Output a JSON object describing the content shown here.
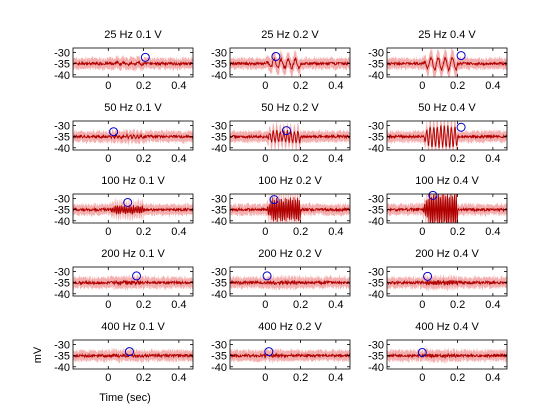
{
  "figure": {
    "xlabel": "Time (sec)",
    "ylabel": "mV",
    "colors": {
      "trace": "#b00000",
      "band": "#f2a0a0",
      "marker": "#0000cc",
      "axis": "#000000"
    }
  },
  "chart_data": {
    "type": "line",
    "layout": {
      "rows": 5,
      "cols": 3
    },
    "xlim": [
      -0.2,
      0.48
    ],
    "ylim": [
      -41,
      -28
    ],
    "xticks": [
      0,
      0.2,
      0.4
    ],
    "xtick_labels": [
      "0",
      "0.2",
      "0.4"
    ],
    "yticks": [
      -30,
      -35,
      -40
    ],
    "ytick_labels": [
      "-30",
      "-35",
      "-40"
    ],
    "baseline_mV": -35,
    "panels": [
      {
        "title": "25 Hz 0.1 V",
        "freq": 25,
        "amp": 0.1,
        "osc_mV": 0.6,
        "marker": [
          0.21,
          -32.2
        ]
      },
      {
        "title": "25 Hz 0.2 V",
        "freq": 25,
        "amp": 0.2,
        "osc_mV": 2.2,
        "marker": [
          0.06,
          -31.8
        ]
      },
      {
        "title": "25 Hz 0.4 V",
        "freq": 25,
        "amp": 0.4,
        "osc_mV": 3.0,
        "marker": [
          0.22,
          -31.4
        ]
      },
      {
        "title": "50 Hz 0.1 V",
        "freq": 50,
        "amp": 0.1,
        "osc_mV": 0.6,
        "marker": [
          0.03,
          -32.8
        ]
      },
      {
        "title": "50 Hz 0.2 V",
        "freq": 50,
        "amp": 0.2,
        "osc_mV": 2.6,
        "marker": [
          0.12,
          -32.3
        ]
      },
      {
        "title": "50 Hz 0.4 V",
        "freq": 50,
        "amp": 0.4,
        "osc_mV": 5.0,
        "marker": [
          0.22,
          -30.8
        ]
      },
      {
        "title": "100 Hz 0.1 V",
        "freq": 100,
        "amp": 0.1,
        "osc_mV": 1.6,
        "marker": [
          0.11,
          -31.8
        ]
      },
      {
        "title": "100 Hz 0.2 V",
        "freq": 100,
        "amp": 0.2,
        "osc_mV": 5.0,
        "marker": [
          0.05,
          -30.5
        ]
      },
      {
        "title": "100 Hz 0.4 V",
        "freq": 100,
        "amp": 0.4,
        "osc_mV": 7.0,
        "marker": [
          0.06,
          -28.6
        ]
      },
      {
        "title": "200 Hz 0.1 V",
        "freq": 200,
        "amp": 0.1,
        "osc_mV": 0.5,
        "marker": [
          0.16,
          -32.0
        ]
      },
      {
        "title": "200 Hz 0.2 V",
        "freq": 200,
        "amp": 0.2,
        "osc_mV": 0.5,
        "marker": [
          0.01,
          -32.0
        ]
      },
      {
        "title": "200 Hz 0.4 V",
        "freq": 200,
        "amp": 0.4,
        "osc_mV": 0.6,
        "marker": [
          0.03,
          -32.2
        ]
      },
      {
        "title": "400 Hz 0.1 V",
        "freq": 400,
        "amp": 0.1,
        "osc_mV": 0.3,
        "marker": [
          0.12,
          -33.2
        ]
      },
      {
        "title": "400 Hz 0.2 V",
        "freq": 400,
        "amp": 0.2,
        "osc_mV": 0.3,
        "marker": [
          0.02,
          -33.2
        ]
      },
      {
        "title": "400 Hz 0.4 V",
        "freq": 400,
        "amp": 0.4,
        "osc_mV": 0.3,
        "marker": [
          0.0,
          -33.6
        ]
      }
    ]
  }
}
